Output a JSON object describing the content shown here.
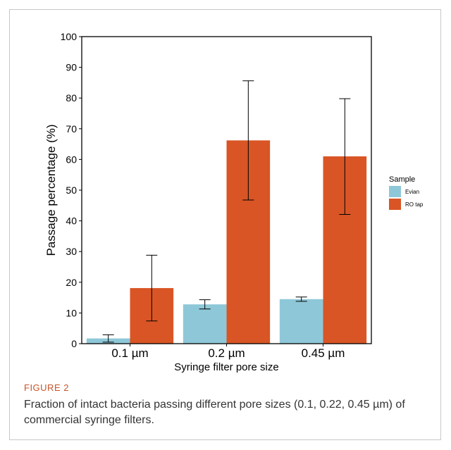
{
  "figure": {
    "label": "FIGURE 2",
    "caption": "Fraction of intact bacteria passing different pore sizes (0.1, 0.22, 0.45 µm) of commercial syringe filters."
  },
  "chart_data": {
    "type": "bar",
    "categories": [
      "0.1 µm",
      "0.2 µm",
      "0.45 µm"
    ],
    "series": [
      {
        "name": "Evian",
        "color": "#8ec8d8",
        "values": [
          1.7,
          12.8,
          14.5
        ],
        "err_low": [
          0.5,
          11.3,
          13.8
        ],
        "err_high": [
          2.9,
          14.3,
          15.2
        ]
      },
      {
        "name": "RO tap",
        "color": "#d95525",
        "values": [
          18.1,
          66.2,
          61.0
        ],
        "err_low": [
          7.4,
          46.8,
          42.1
        ],
        "err_high": [
          28.8,
          85.6,
          79.8
        ]
      }
    ],
    "xlabel": "Syringe filter pore size",
    "ylabel": "Passage percentage (%)",
    "ylim": [
      0,
      100
    ],
    "yticks": [
      0,
      10,
      20,
      30,
      40,
      50,
      60,
      70,
      80,
      90,
      100
    ],
    "legend_title": "Sample",
    "legend_position": "right",
    "grid": false
  }
}
